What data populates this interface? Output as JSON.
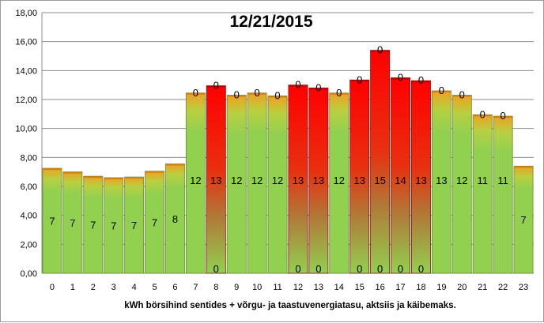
{
  "chart_data": {
    "type": "bar",
    "title": "12/21/2015",
    "xlabel": "kWh börsihind sentides + võrgu- ja taastuvenergiatasu,  aktsiis ja käibemaks.",
    "ylabel": "",
    "ylim": [
      0,
      18
    ],
    "yticks": [
      "0,00",
      "2,00",
      "4,00",
      "6,00",
      "8,00",
      "10,00",
      "12,00",
      "14,00",
      "16,00",
      "18,00"
    ],
    "grid": true,
    "categories": [
      "0",
      "1",
      "2",
      "3",
      "4",
      "5",
      "6",
      "7",
      "8",
      "9",
      "10",
      "11",
      "12",
      "13",
      "14",
      "15",
      "16",
      "17",
      "18",
      "19",
      "20",
      "21",
      "22",
      "23"
    ],
    "values": [
      7.25,
      7.0,
      6.7,
      6.6,
      6.65,
      7.05,
      7.55,
      12.45,
      12.95,
      12.3,
      12.45,
      12.25,
      13.0,
      12.8,
      12.45,
      13.35,
      15.4,
      13.5,
      13.3,
      12.6,
      12.3,
      10.95,
      10.85,
      7.4
    ],
    "bar_colors": [
      "green",
      "green",
      "green",
      "green",
      "green",
      "green",
      "green",
      "green",
      "red",
      "green",
      "green",
      "green",
      "red",
      "red",
      "green",
      "red",
      "red",
      "red",
      "red",
      "green",
      "green",
      "green",
      "green",
      "green"
    ],
    "colors": {
      "green": "#92d050",
      "green_top": "#f5a623",
      "red": "#ff0000",
      "red_mid": "#d85a2a",
      "red_bottom": "#92d050"
    },
    "series": [
      {
        "values": [
          "7",
          "7",
          "7",
          "7",
          "7",
          "7",
          "8",
          "12",
          "13",
          "12",
          "12",
          "12",
          "13",
          "13",
          "12",
          "13",
          "15",
          "14",
          "13",
          "13",
          "12",
          "11",
          "11",
          "7"
        ]
      },
      {
        "values": [
          "",
          "",
          "",
          "",
          "",
          "",
          "",
          "0",
          "0",
          "0",
          "0",
          "0",
          "0",
          "0",
          "0",
          "0",
          "0",
          "0",
          "0",
          "0",
          "0",
          "0",
          "0",
          ""
        ]
      }
    ],
    "base_labels": [
      "",
      "",
      "",
      "",
      "",
      "",
      "",
      "",
      "0",
      "",
      "",
      "",
      "0",
      "0",
      "",
      "0",
      "0",
      "0",
      "0",
      "",
      "",
      "",
      "",
      ""
    ]
  }
}
